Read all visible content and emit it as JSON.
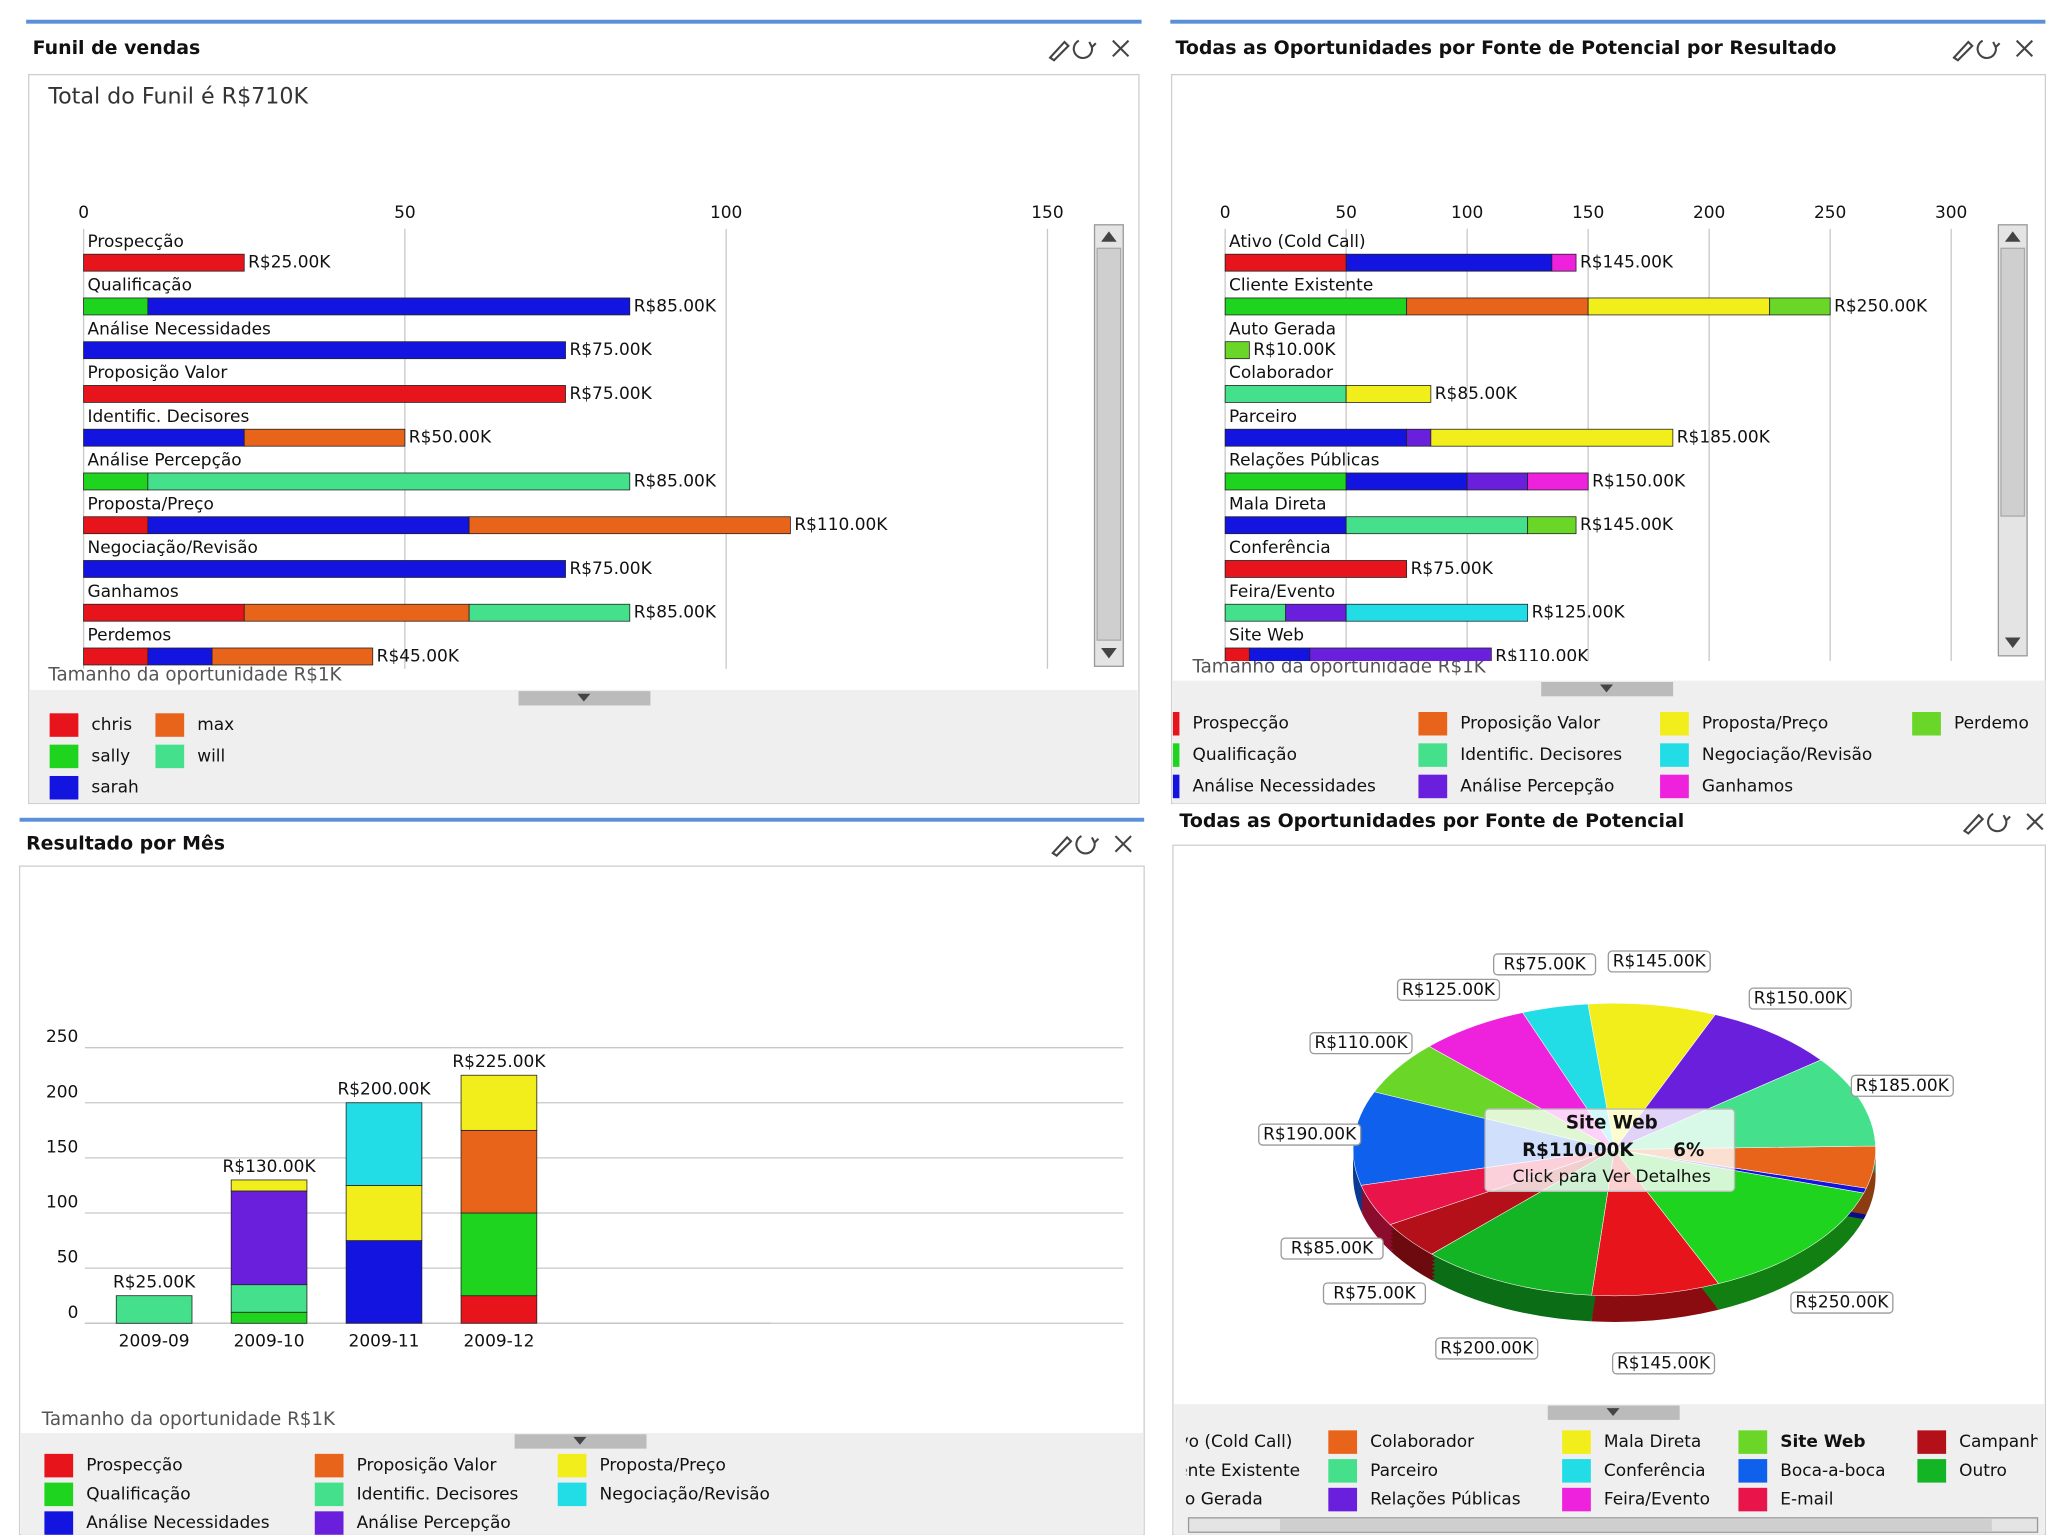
{
  "chart_data": [
    {
      "type": "hbar",
      "title": "Funil de vendas",
      "subtitle": "Total do Funil é R$710K",
      "x_label": "Tamanho da oportunidade R$1K",
      "categories": [
        "Prospecção",
        "Qualificação",
        "Análise Necessidades",
        "Proposição Valor",
        "Identific. Decisores",
        "Análise Percepção",
        "Proposta/Preço",
        "Negociação/Revisão",
        "Ganhamos",
        "Perdemos"
      ],
      "series": [
        {
          "name": "chris",
          "color": "#e8141b",
          "values": [
            25,
            null,
            null,
            75,
            null,
            null,
            10,
            null,
            25,
            10
          ]
        },
        {
          "name": "sally",
          "color": "#1ed41e",
          "values": [
            null,
            10,
            null,
            null,
            null,
            10,
            null,
            null,
            null,
            null
          ]
        },
        {
          "name": "sarah",
          "color": "#1414e0",
          "values": [
            null,
            75,
            75,
            null,
            25,
            null,
            50,
            75,
            null,
            10
          ]
        },
        {
          "name": "max",
          "color": "#e8641b",
          "values": [
            null,
            null,
            null,
            null,
            25,
            null,
            50,
            null,
            35,
            25
          ]
        },
        {
          "name": "will",
          "color": "#44e08c",
          "values": [
            null,
            null,
            null,
            null,
            null,
            75,
            null,
            null,
            25,
            null
          ]
        }
      ],
      "value_labels": [
        "R$25.00K",
        "R$85.00K",
        "R$75.00K",
        "R$75.00K",
        "R$50.00K",
        "R$85.00K",
        "R$110.00K",
        "R$75.00K",
        "R$85.00K",
        "R$45.00K"
      ],
      "xlim": [
        0,
        157
      ],
      "xticks": [
        0,
        50,
        100,
        150
      ],
      "grid": true
    },
    {
      "type": "hbar",
      "title": "Todas as Oportunidades por Fonte de Potencial por Resultado",
      "x_label": "Tamanho da oportunidade R$1K",
      "categories": [
        "Ativo (Cold Call)",
        "Cliente Existente",
        "Auto Gerada",
        "Colaborador",
        "Parceiro",
        "Relações Públicas",
        "Mala Direta",
        "Conferência",
        "Feira/Evento",
        "Site Web"
      ],
      "series": [
        {
          "name": "Prospecção",
          "color": "#e8141b",
          "values": [
            50,
            null,
            null,
            null,
            null,
            null,
            null,
            75,
            null,
            10
          ]
        },
        {
          "name": "Qualificação",
          "color": "#1ed41e",
          "values": [
            null,
            75,
            null,
            null,
            null,
            50,
            null,
            null,
            null,
            null
          ]
        },
        {
          "name": "Análise Necessidades",
          "color": "#1414e0",
          "values": [
            85,
            null,
            null,
            null,
            75,
            50,
            50,
            null,
            null,
            25
          ]
        },
        {
          "name": "Proposição Valor",
          "color": "#e8641b",
          "values": [
            null,
            75,
            null,
            null,
            null,
            null,
            null,
            null,
            null,
            null
          ]
        },
        {
          "name": "Identific. Decisores",
          "color": "#44e08c",
          "values": [
            null,
            null,
            null,
            50,
            null,
            null,
            75,
            null,
            25,
            null
          ]
        },
        {
          "name": "Análise Percepção",
          "color": "#6a1fdc",
          "values": [
            null,
            null,
            null,
            null,
            10,
            25,
            null,
            null,
            25,
            75
          ]
        },
        {
          "name": "Proposta/Preço",
          "color": "#f2ee1c",
          "values": [
            null,
            75,
            null,
            35,
            100,
            null,
            null,
            null,
            null,
            null
          ]
        },
        {
          "name": "Negociação/Revisão",
          "color": "#22dde6",
          "values": [
            null,
            null,
            null,
            null,
            null,
            null,
            null,
            null,
            75,
            null
          ]
        },
        {
          "name": "Ganhamos",
          "color": "#ee22dd",
          "values": [
            10,
            null,
            null,
            null,
            null,
            25,
            null,
            null,
            null,
            null
          ]
        },
        {
          "name": "Perdemos",
          "color": "#6ad628",
          "values": [
            null,
            25,
            10,
            null,
            null,
            null,
            20,
            null,
            null,
            null
          ]
        }
      ],
      "value_labels": [
        "R$145.00K",
        "R$250.00K",
        "R$10.00K",
        "R$85.00K",
        "R$185.00K",
        "R$150.00K",
        "R$145.00K",
        "R$75.00K",
        "R$125.00K",
        "R$110.00K"
      ],
      "xlim": [
        0,
        316
      ],
      "xticks": [
        0,
        50,
        100,
        150,
        200,
        250,
        300
      ],
      "grid": true
    },
    {
      "type": "bar",
      "title": "Resultado por Mês",
      "x_label": "Tamanho da oportunidade R$1K",
      "categories": [
        "2009-09",
        "2009-10",
        "2009-11",
        "2009-12"
      ],
      "series": [
        {
          "name": "Prospecção",
          "color": "#e8141b",
          "values": [
            null,
            null,
            null,
            25
          ]
        },
        {
          "name": "Qualificação",
          "color": "#1ed41e",
          "values": [
            null,
            10,
            null,
            75
          ]
        },
        {
          "name": "Análise Necessidades",
          "color": "#1414e0",
          "values": [
            null,
            null,
            75,
            null
          ]
        },
        {
          "name": "Proposição Valor",
          "color": "#e8641b",
          "values": [
            null,
            null,
            null,
            75
          ]
        },
        {
          "name": "Identific. Decisores",
          "color": "#44e08c",
          "values": [
            25,
            25,
            null,
            null
          ]
        },
        {
          "name": "Análise Percepção",
          "color": "#6a1fdc",
          "values": [
            null,
            85,
            null,
            null
          ]
        },
        {
          "name": "Proposta/Preço",
          "color": "#f2ee1c",
          "values": [
            null,
            10,
            50,
            50
          ]
        },
        {
          "name": "Negociação/Revisão",
          "color": "#22dde6",
          "values": [
            null,
            null,
            75,
            null
          ]
        }
      ],
      "value_labels": [
        "R$25.00K",
        "R$130.00K",
        "R$200.00K",
        "R$225.00K"
      ],
      "ylim": [
        0,
        250
      ],
      "yticks": [
        0,
        50,
        100,
        150,
        200,
        250
      ],
      "grid": true
    },
    {
      "type": "pie",
      "title": "Todas as Oportunidades por Fonte de Potencial",
      "categories": [
        "Ativo (Cold Call)",
        "Cliente Existente",
        "Auto Gerada",
        "Colaborador",
        "Parceiro",
        "Relações Públicas",
        "Mala Direta",
        "Conferência",
        "Feira/Evento",
        "Site Web",
        "Boca-a-boca",
        "E-mail",
        "Campanha",
        "Outro"
      ],
      "values": [
        145,
        250,
        10,
        85,
        185,
        150,
        145,
        75,
        125,
        110,
        190,
        85,
        75,
        200
      ],
      "value_labels": [
        "R$145.00K",
        "R$250.00K",
        null,
        null,
        "R$185.00K",
        "R$150.00K",
        "R$145.00K",
        "R$75.00K",
        "R$125.00K",
        "R$110.00K",
        "R$190.00K",
        "R$85.00K",
        "R$75.00K",
        "R$200.00K"
      ],
      "colors": [
        "#e8141b",
        "#1ed41e",
        "#1414e0",
        "#e8641b",
        "#44e08c",
        "#6a1fdc",
        "#f2ee1c",
        "#22dde6",
        "#ee22dd",
        "#6ad628",
        "#1060ee",
        "#e8144a",
        "#b4101a",
        "#13b524"
      ],
      "tooltip": {
        "name": "Site Web",
        "value_label": "R$110.00K",
        "percent_label": "6%",
        "hint": "Click para Ver Detalhes"
      }
    }
  ]
}
